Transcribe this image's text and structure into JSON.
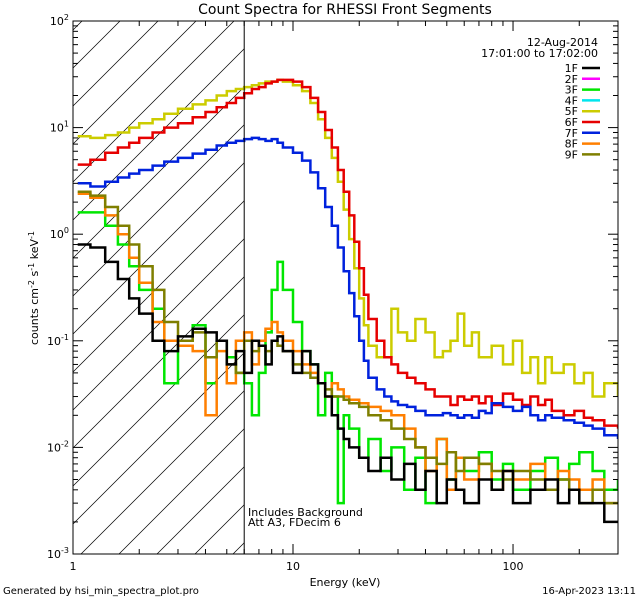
{
  "chart_data": {
    "type": "line",
    "title": "Count Spectra for RHESSI Front Segments",
    "xlabel": "Energy (keV)",
    "ylabel_main": "counts cm",
    "ylabel_sup1": "-2",
    "ylabel_mid1": " s",
    "ylabel_sup2": "-1",
    "ylabel_mid2": " keV",
    "ylabel_sup3": "-1",
    "x_scale": "log",
    "y_scale": "log",
    "xlim": [
      1,
      300
    ],
    "ylim": [
      0.001,
      100
    ],
    "x_ticks": [
      {
        "value": 1,
        "label": "1"
      },
      {
        "value": 10,
        "label": "10"
      },
      {
        "value": 100,
        "label": "100"
      }
    ],
    "y_ticks": [
      {
        "value": 0.001,
        "base": "10",
        "exp": "-3"
      },
      {
        "value": 0.01,
        "base": "10",
        "exp": "-2"
      },
      {
        "value": 0.1,
        "base": "10",
        "exp": "-1"
      },
      {
        "value": 1,
        "base": "10",
        "exp": "0"
      },
      {
        "value": 10,
        "base": "10",
        "exp": "1"
      },
      {
        "value": 100,
        "base": "10",
        "exp": "2"
      }
    ],
    "date": "12-Aug-2014",
    "time_range": "17:01:00 to 17:02:00",
    "hatch_region_max_kev": 6,
    "annotations": [
      "Includes Background",
      "Att A3, FDecim 6"
    ],
    "legend": [
      {
        "name": "1F",
        "color": "#000000"
      },
      {
        "name": "2F",
        "color": "#ff00ff"
      },
      {
        "name": "3F",
        "color": "#00e600"
      },
      {
        "name": "4F",
        "color": "#00e5ee"
      },
      {
        "name": "5F",
        "color": "#cccc00"
      },
      {
        "name": "6F",
        "color": "#e60000"
      },
      {
        "name": "7F",
        "color": "#0022dd"
      },
      {
        "name": "8F",
        "color": "#ff7f00"
      },
      {
        "name": "9F",
        "color": "#7f7f00"
      }
    ],
    "series": [
      {
        "name": "5F",
        "color": "#cccc00",
        "x": [
          1.05,
          1.2,
          1.4,
          1.6,
          1.8,
          2,
          2.3,
          2.6,
          3,
          3.5,
          4,
          4.5,
          5,
          5.5,
          6,
          6.5,
          7,
          7.5,
          8,
          8.5,
          9,
          10,
          11,
          12,
          13,
          14,
          15,
          16,
          17,
          18,
          19,
          20,
          21,
          22,
          24,
          26,
          28,
          30,
          33,
          36,
          40,
          44,
          48,
          52,
          56,
          60,
          65,
          70,
          75,
          80,
          90,
          100,
          110,
          120,
          130,
          140,
          150,
          170,
          190,
          210,
          230,
          260,
          300
        ],
        "y": [
          8.3,
          8,
          8.5,
          9,
          10,
          11,
          12,
          13.5,
          15,
          16.5,
          18,
          20,
          22,
          23,
          24,
          25,
          26,
          27,
          27,
          28,
          27,
          25,
          22,
          17,
          12,
          8,
          5.2,
          3.1,
          1.7,
          0.9,
          0.48,
          0.25,
          0.14,
          0.09,
          0.07,
          0.07,
          0.2,
          0.12,
          0.1,
          0.16,
          0.12,
          0.07,
          0.08,
          0.1,
          0.18,
          0.09,
          0.12,
          0.07,
          0.07,
          0.09,
          0.06,
          0.1,
          0.05,
          0.07,
          0.04,
          0.07,
          0.05,
          0.06,
          0.04,
          0.05,
          0.03,
          0.04,
          0.03
        ]
      },
      {
        "name": "6F",
        "color": "#e60000",
        "x": [
          1.05,
          1.2,
          1.4,
          1.6,
          1.8,
          2,
          2.3,
          2.6,
          3,
          3.5,
          4,
          4.5,
          5,
          5.5,
          6,
          6.5,
          7,
          7.5,
          8,
          8.5,
          9,
          10,
          11,
          12,
          13,
          14,
          15,
          16,
          17,
          18,
          19,
          20,
          21,
          22,
          24,
          26,
          28,
          30,
          33,
          36,
          40,
          44,
          48,
          52,
          56,
          60,
          65,
          70,
          75,
          80,
          90,
          100,
          110,
          120,
          130,
          140,
          150,
          170,
          190,
          210,
          230,
          260,
          300
        ],
        "y": [
          4.5,
          5,
          5.8,
          6.5,
          7.2,
          8,
          9,
          10,
          11,
          12.5,
          14,
          15.5,
          17,
          19,
          21,
          23,
          24,
          26,
          27,
          28,
          28,
          27,
          24,
          19,
          14,
          9.5,
          6.5,
          4,
          2.5,
          1.5,
          0.85,
          0.48,
          0.27,
          0.16,
          0.1,
          0.07,
          0.06,
          0.05,
          0.045,
          0.04,
          0.035,
          0.03,
          0.03,
          0.025,
          0.03,
          0.028,
          0.03,
          0.026,
          0.03,
          0.025,
          0.032,
          0.028,
          0.025,
          0.03,
          0.025,
          0.028,
          0.022,
          0.02,
          0.022,
          0.019,
          0.018,
          0.016,
          0.015
        ]
      },
      {
        "name": "7F",
        "color": "#0022dd",
        "x": [
          1.05,
          1.2,
          1.4,
          1.6,
          1.8,
          2,
          2.3,
          2.6,
          3,
          3.5,
          4,
          4.5,
          5,
          5.5,
          6,
          6.5,
          7,
          7.5,
          8,
          8.5,
          9,
          10,
          11,
          12,
          13,
          14,
          15,
          16,
          17,
          18,
          19,
          20,
          21,
          22,
          24,
          26,
          28,
          30,
          33,
          36,
          40,
          44,
          48,
          52,
          56,
          60,
          65,
          70,
          75,
          80,
          90,
          100,
          110,
          120,
          130,
          140,
          150,
          170,
          190,
          210,
          230,
          260,
          300
        ],
        "y": [
          3,
          2.8,
          3.1,
          3.4,
          3.7,
          4,
          4.4,
          4.8,
          5.2,
          5.7,
          6.2,
          6.8,
          7.2,
          7.5,
          7.8,
          8,
          7.8,
          7.5,
          7.8,
          7.2,
          6.5,
          5.8,
          4.9,
          3.8,
          2.7,
          1.8,
          1.2,
          0.75,
          0.45,
          0.28,
          0.17,
          0.1,
          0.065,
          0.045,
          0.035,
          0.03,
          0.027,
          0.025,
          0.024,
          0.022,
          0.02,
          0.02,
          0.021,
          0.02,
          0.019,
          0.02,
          0.019,
          0.022,
          0.021,
          0.026,
          0.024,
          0.022,
          0.024,
          0.02,
          0.018,
          0.02,
          0.019,
          0.018,
          0.017,
          0.016,
          0.015,
          0.013,
          0.012
        ]
      },
      {
        "name": "3F",
        "color": "#00e600",
        "x": [
          1.05,
          1.2,
          1.4,
          1.6,
          1.8,
          2,
          2.3,
          2.6,
          3,
          3.5,
          4,
          4.5,
          5,
          5.5,
          6,
          6.5,
          7,
          7.5,
          8,
          8.5,
          9,
          10,
          11,
          12,
          13,
          14,
          15,
          16,
          17,
          18,
          20,
          22,
          25,
          28,
          32,
          36,
          40,
          45,
          50,
          55,
          60,
          70,
          80,
          90,
          100,
          120,
          140,
          160,
          180,
          200,
          230,
          260,
          300
        ],
        "y": [
          1.6,
          1.6,
          1.2,
          0.8,
          0.5,
          0.3,
          0.2,
          0.04,
          0.1,
          0.14,
          0.04,
          0.1,
          0.07,
          0.05,
          0.04,
          0.02,
          0.05,
          0.12,
          0.3,
          0.55,
          0.3,
          0.15,
          0.08,
          0.06,
          0.02,
          0.05,
          0.03,
          0.003,
          0.02,
          0.015,
          0.008,
          0.012,
          0.006,
          0.01,
          0.004,
          0.008,
          0.003,
          0.012,
          0.005,
          0.008,
          0.006,
          0.009,
          0.005,
          0.007,
          0.004,
          0.006,
          0.008,
          0.005,
          0.007,
          0.009,
          0.006,
          0.004,
          0.005
        ]
      },
      {
        "name": "8F",
        "color": "#ff7f00",
        "x": [
          1.05,
          1.2,
          1.4,
          1.6,
          1.8,
          2,
          2.3,
          2.6,
          3,
          3.5,
          4,
          4.5,
          5,
          5.5,
          6,
          6.5,
          7,
          7.5,
          8,
          8.5,
          9,
          10,
          11,
          12,
          13,
          14,
          15,
          16,
          17,
          18,
          20,
          22,
          25,
          28,
          32,
          36,
          40,
          45,
          50,
          55,
          60,
          70,
          80,
          90,
          100,
          120,
          140,
          160,
          180,
          200,
          230,
          260,
          300
        ],
        "y": [
          2.4,
          2.2,
          1.5,
          1,
          0.6,
          0.35,
          0.15,
          0.1,
          0.09,
          0.08,
          0.02,
          0.08,
          0.04,
          0.1,
          0.12,
          0.06,
          0.1,
          0.13,
          0.15,
          0.12,
          0.1,
          0.08,
          0.06,
          0.05,
          0.04,
          0.03,
          0.04,
          0.035,
          0.03,
          0.028,
          0.026,
          0.024,
          0.022,
          0.02,
          0.015,
          0.01,
          0.006,
          0.012,
          0.004,
          0.008,
          0.005,
          0.007,
          0.004,
          0.006,
          0.005,
          0.007,
          0.004,
          0.006,
          0.005,
          0.004,
          0.005,
          0.003,
          0.003
        ]
      },
      {
        "name": "9F",
        "color": "#7f7f00",
        "x": [
          1.05,
          1.2,
          1.4,
          1.6,
          1.8,
          2,
          2.3,
          2.6,
          3,
          3.5,
          4,
          4.5,
          5,
          5.5,
          6,
          6.5,
          7,
          7.5,
          8,
          8.5,
          9,
          10,
          11,
          12,
          13,
          14,
          15,
          16,
          17,
          18,
          20,
          22,
          25,
          28,
          32,
          36,
          40,
          45,
          50,
          55,
          60,
          70,
          80,
          90,
          100,
          120,
          140,
          160,
          180,
          200,
          230,
          260,
          300
        ],
        "y": [
          2.5,
          2.3,
          1.8,
          1.2,
          0.8,
          0.5,
          0.3,
          0.15,
          0.1,
          0.12,
          0.07,
          0.1,
          0.06,
          0.05,
          0.1,
          0.08,
          0.09,
          0.08,
          0.1,
          0.09,
          0.08,
          0.06,
          0.05,
          0.045,
          0.04,
          0.035,
          0.03,
          0.03,
          0.028,
          0.026,
          0.024,
          0.02,
          0.018,
          0.015,
          0.012,
          0.01,
          0.008,
          0.007,
          0.009,
          0.006,
          0.008,
          0.007,
          0.006,
          0.005,
          0.006,
          0.005,
          0.004,
          0.005,
          0.004,
          0.003,
          0.004,
          0.003,
          0.003
        ]
      },
      {
        "name": "1F",
        "color": "#000000",
        "x": [
          1.05,
          1.2,
          1.4,
          1.6,
          1.8,
          2,
          2.3,
          2.6,
          3,
          3.5,
          4,
          4.5,
          5,
          5.5,
          6,
          6.5,
          7,
          7.5,
          8,
          8.5,
          9,
          10,
          11,
          12,
          13,
          14,
          15,
          16,
          17,
          18,
          20,
          22,
          25,
          28,
          32,
          36,
          40,
          45,
          50,
          55,
          60,
          70,
          80,
          90,
          100,
          120,
          140,
          160,
          180,
          200,
          230,
          260,
          300
        ],
        "y": [
          0.8,
          0.75,
          0.55,
          0.38,
          0.25,
          0.18,
          0.1,
          0.08,
          0.11,
          0.13,
          0.12,
          0.1,
          0.06,
          0.08,
          0.05,
          0.1,
          0.09,
          0.06,
          0.1,
          0.11,
          0.08,
          0.05,
          0.08,
          0.06,
          0.04,
          0.03,
          0.02,
          0.015,
          0.012,
          0.01,
          0.008,
          0.006,
          0.008,
          0.005,
          0.007,
          0.004,
          0.006,
          0.003,
          0.005,
          0.004,
          0.003,
          0.005,
          0.004,
          0.006,
          0.003,
          0.004,
          0.005,
          0.003,
          0.004,
          0.003,
          0.003,
          0.002,
          0.002
        ]
      }
    ]
  },
  "footer": {
    "left": "Generated by hsi_min_spectra_plot.pro",
    "right": "16-Apr-2023 13:11"
  }
}
